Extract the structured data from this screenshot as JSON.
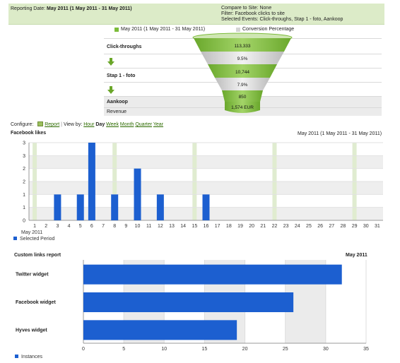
{
  "header": {
    "reporting_date_label": "Reporting Date:",
    "reporting_date_value": "May 2011 (1 May 2011 - 31 May 2011)",
    "compare_label": "Compare to Site:",
    "compare_value": "None",
    "filter_label": "Filter:",
    "filter_value": "Facebook clicks to site",
    "events_label": "Selected Events:",
    "events_value": "Click-throughs, Stap 1 - foto, Aankoop"
  },
  "funnel": {
    "legend_period": "May 2011 (1 May 2011 - 31 May 2011)",
    "legend_conversion": "Conversion Percentage",
    "colors": {
      "green": "#7cbc3a",
      "gray": "#d8d8d8",
      "legend_gray": "#d4d4d4"
    },
    "rows": [
      {
        "label": "Click-throughs",
        "value": "113,333"
      },
      {
        "label": "",
        "value": "9.5%",
        "arrow": "green-down-arrow-icon"
      },
      {
        "label": "Stap 1 - foto",
        "value": "10,744"
      },
      {
        "label": "",
        "value": "7.9%",
        "arrow": "green-down-arrow-icon"
      },
      {
        "label": "Aankoop",
        "value": "850"
      }
    ],
    "revenue_label": "Revenue",
    "revenue_value": "1,574 EUR"
  },
  "configure": {
    "label": "Configure:",
    "report_label": "Report",
    "report_icon": "report-icon",
    "view_by_label": "View by:",
    "options": [
      "Hour",
      "Day",
      "Week",
      "Month",
      "Quarter",
      "Year"
    ],
    "selected": "Day"
  },
  "chart_data": [
    {
      "type": "bar",
      "title": "Facebook likes",
      "subtitle": "May 2011 (1 May 2011 - 31 May 2011)",
      "x_label": "May 2011",
      "categories": [
        "1",
        "2",
        "3",
        "4",
        "5",
        "6",
        "7",
        "8",
        "9",
        "10",
        "11",
        "12",
        "13",
        "14",
        "15",
        "16",
        "17",
        "18",
        "19",
        "20",
        "21",
        "22",
        "23",
        "24",
        "25",
        "26",
        "27",
        "28",
        "29",
        "30",
        "31"
      ],
      "series": [
        {
          "name": "Selected Period",
          "values": [
            0,
            0,
            1,
            0,
            1,
            3,
            0,
            1,
            0,
            2,
            0,
            1,
            0,
            0,
            0,
            1,
            0,
            0,
            0,
            0,
            0,
            0,
            0,
            0,
            0,
            0,
            0,
            0,
            0,
            0,
            0
          ]
        }
      ],
      "ylim": [
        0,
        3
      ],
      "yticks": [
        0,
        0.5,
        1,
        1.5,
        2,
        2.5,
        3
      ],
      "ytick_labels": [
        "0",
        "1",
        "1",
        "2",
        "2",
        "3",
        "3"
      ],
      "highlight_days": [
        1,
        8,
        15,
        22,
        29
      ],
      "grid": true,
      "legend": "bottom-left",
      "colors": {
        "bar": "#1c5fd0",
        "band": "#eeeeee",
        "highlight": "#e0ecd0"
      }
    },
    {
      "type": "bar",
      "orientation": "horizontal",
      "title": "Custom links report",
      "subtitle": "May 2011",
      "categories": [
        "Twitter widget",
        "Facebook widget",
        "Hyves widget"
      ],
      "series": [
        {
          "name": "Instances",
          "values": [
            32,
            26,
            19
          ]
        }
      ],
      "xlim": [
        0,
        35
      ],
      "xticks": [
        0,
        5,
        10,
        15,
        20,
        25,
        30,
        35
      ],
      "grid": true,
      "legend": "bottom-left",
      "colors": {
        "bar": "#1c5fd0",
        "band": "#ebebeb"
      }
    }
  ]
}
